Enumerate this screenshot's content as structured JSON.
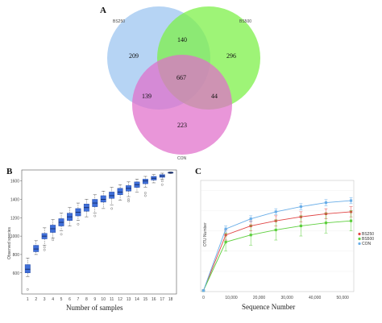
{
  "chart_data": [
    {
      "panel": "A",
      "type": "venn",
      "sets": [
        {
          "name": "BS250",
          "color": "#a9cdf2"
        },
        {
          "name": "BS500",
          "color": "#86f04a"
        },
        {
          "name": "CON",
          "color": "#e06ecb"
        }
      ],
      "regions": {
        "a_only": 209,
        "b_only": 296,
        "c_only": 223,
        "ab": 140,
        "ac": 139,
        "bc": 44,
        "abc": 667
      }
    },
    {
      "panel": "B",
      "type": "box",
      "xlabel": "Number of samples",
      "ylabel": "Observed species",
      "categories": [
        "1",
        "2",
        "3",
        "4",
        "5",
        "6",
        "7",
        "8",
        "9",
        "10",
        "11",
        "12",
        "13",
        "14",
        "15",
        "16",
        "17",
        "18"
      ],
      "yticks": [
        600,
        800,
        1000,
        1200,
        1400,
        1600
      ],
      "ylim": [
        370,
        1720
      ],
      "boxes": [
        {
          "min": 560,
          "q1": 600,
          "med": 640,
          "q3": 690,
          "max": 760,
          "out": [
            420
          ]
        },
        {
          "min": 800,
          "q1": 830,
          "med": 860,
          "q3": 900,
          "max": 950,
          "out": []
        },
        {
          "min": 900,
          "q1": 970,
          "med": 1000,
          "q3": 1030,
          "max": 1090,
          "out": [
            880,
            850
          ]
        },
        {
          "min": 980,
          "q1": 1040,
          "med": 1080,
          "q3": 1120,
          "max": 1180,
          "out": [
            960
          ]
        },
        {
          "min": 1060,
          "q1": 1110,
          "med": 1150,
          "q3": 1190,
          "max": 1250,
          "out": [
            1020
          ]
        },
        {
          "min": 1110,
          "q1": 1170,
          "med": 1210,
          "q3": 1250,
          "max": 1310,
          "out": []
        },
        {
          "min": 1170,
          "q1": 1220,
          "med": 1260,
          "q3": 1300,
          "max": 1360,
          "out": [
            1130
          ]
        },
        {
          "min": 1210,
          "q1": 1270,
          "med": 1310,
          "q3": 1350,
          "max": 1400,
          "out": []
        },
        {
          "min": 1250,
          "q1": 1320,
          "med": 1360,
          "q3": 1400,
          "max": 1450,
          "out": [
            1220
          ]
        },
        {
          "min": 1300,
          "q1": 1370,
          "med": 1400,
          "q3": 1440,
          "max": 1490,
          "out": []
        },
        {
          "min": 1340,
          "q1": 1410,
          "med": 1440,
          "q3": 1480,
          "max": 1530,
          "out": [
            1300
          ]
        },
        {
          "min": 1390,
          "q1": 1450,
          "med": 1480,
          "q3": 1520,
          "max": 1560,
          "out": []
        },
        {
          "min": 1430,
          "q1": 1490,
          "med": 1520,
          "q3": 1550,
          "max": 1590,
          "out": [
            1400,
            1380
          ]
        },
        {
          "min": 1480,
          "q1": 1530,
          "med": 1560,
          "q3": 1590,
          "max": 1620,
          "out": []
        },
        {
          "min": 1530,
          "q1": 1570,
          "med": 1600,
          "q3": 1620,
          "max": 1650,
          "out": [
            1470,
            1440
          ]
        },
        {
          "min": 1580,
          "q1": 1610,
          "med": 1630,
          "q3": 1650,
          "max": 1670,
          "out": []
        },
        {
          "min": 1620,
          "q1": 1640,
          "med": 1655,
          "q3": 1670,
          "max": 1685,
          "out": [
            1600,
            1560
          ]
        },
        {
          "min": 1680,
          "q1": 1685,
          "med": 1690,
          "q3": 1695,
          "max": 1700,
          "out": []
        }
      ]
    },
    {
      "panel": "C",
      "type": "line",
      "xlabel": "Sequence Number",
      "ylabel": "OTU Number",
      "x": [
        0,
        8000,
        17000,
        26000,
        35000,
        44000,
        53000
      ],
      "xticks": [
        "0",
        "10,000",
        "20,000",
        "30,000",
        "40,000",
        "50,000"
      ],
      "xtick_values": [
        0,
        10000,
        20000,
        30000,
        40000,
        50000
      ],
      "xlim": [
        -1000,
        54000
      ],
      "ylim": [
        0,
        1100
      ],
      "series": [
        {
          "name": "BS250",
          "color": "#e04545",
          "values": [
            10,
            560,
            650,
            700,
            740,
            770,
            790
          ],
          "err": [
            5,
            50,
            50,
            50,
            50,
            50,
            50
          ]
        },
        {
          "name": "BS500",
          "color": "#5ecf3e",
          "values": [
            10,
            490,
            560,
            610,
            650,
            680,
            700
          ],
          "err": [
            5,
            90,
            100,
            100,
            100,
            100,
            100
          ]
        },
        {
          "name": "CON",
          "color": "#6aaee8",
          "values": [
            10,
            620,
            720,
            790,
            840,
            880,
            900
          ],
          "err": [
            5,
            30,
            30,
            30,
            30,
            30,
            30
          ]
        }
      ]
    }
  ]
}
